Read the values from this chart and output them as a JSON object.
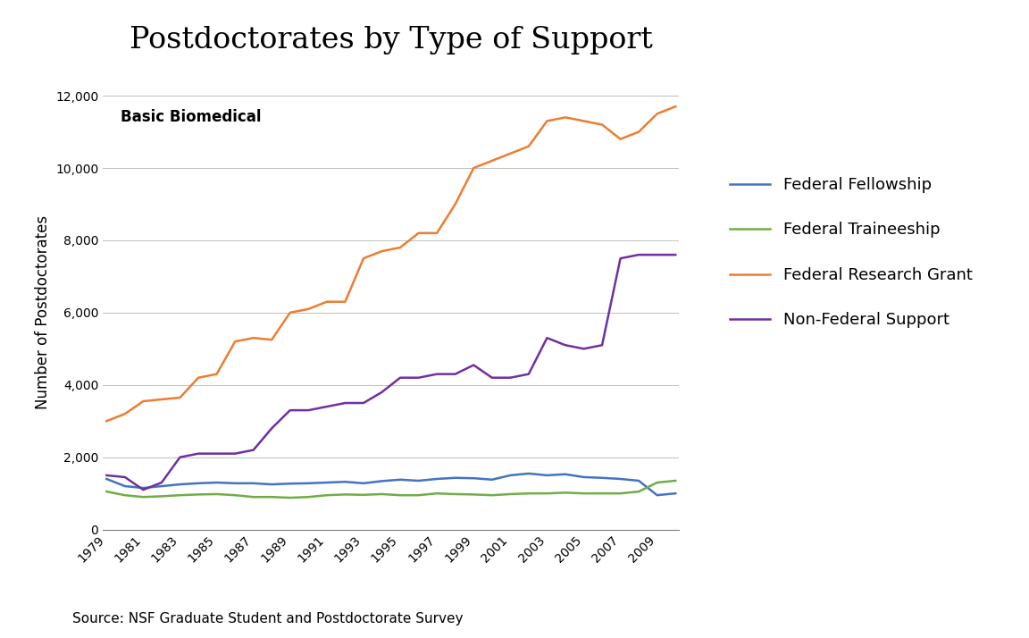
{
  "title": "Postdoctorates by Type of Support",
  "subtitle": "Basic Biomedical",
  "ylabel": "Number of Postdoctorates",
  "source": "Source: NSF Graduate Student and Postdoctorate Survey",
  "years": [
    1979,
    1980,
    1981,
    1982,
    1983,
    1984,
    1985,
    1986,
    1987,
    1988,
    1989,
    1990,
    1991,
    1992,
    1993,
    1994,
    1995,
    1996,
    1997,
    1998,
    1999,
    2000,
    2001,
    2002,
    2003,
    2004,
    2005,
    2006,
    2007,
    2008,
    2009,
    2010
  ],
  "federal_fellowship": [
    1400,
    1200,
    1150,
    1200,
    1250,
    1280,
    1300,
    1280,
    1280,
    1250,
    1270,
    1280,
    1300,
    1320,
    1280,
    1340,
    1380,
    1350,
    1400,
    1430,
    1420,
    1380,
    1500,
    1550,
    1500,
    1530,
    1450,
    1430,
    1400,
    1350,
    950,
    1000
  ],
  "federal_traineeship": [
    1050,
    950,
    900,
    920,
    950,
    970,
    980,
    950,
    900,
    900,
    880,
    900,
    950,
    970,
    960,
    980,
    950,
    950,
    1000,
    980,
    970,
    950,
    980,
    1000,
    1000,
    1020,
    1000,
    1000,
    1000,
    1050,
    1300,
    1350
  ],
  "federal_research_grant": [
    3000,
    3200,
    3550,
    3600,
    3650,
    4200,
    4300,
    5200,
    5300,
    5250,
    6000,
    6100,
    6300,
    6300,
    7500,
    7700,
    7800,
    8200,
    8200,
    9000,
    10000,
    10200,
    10400,
    10600,
    11300,
    11400,
    11300,
    11200,
    10800,
    11000,
    11500,
    11700
  ],
  "non_federal_support": [
    1500,
    1450,
    1100,
    1300,
    2000,
    2100,
    2100,
    2100,
    2200,
    2800,
    3300,
    3300,
    3400,
    3500,
    3500,
    3800,
    4200,
    4200,
    4300,
    4300,
    4550,
    4200,
    4200,
    4300,
    5300,
    5100,
    5000,
    5100,
    7500,
    7600,
    7600,
    7600
  ],
  "fellowship_color": "#4472C4",
  "traineeship_color": "#70AD47",
  "research_grant_color": "#ED7D31",
  "non_federal_color": "#7030A0",
  "ylim": [
    0,
    12000
  ],
  "yticks": [
    0,
    2000,
    4000,
    6000,
    8000,
    10000,
    12000
  ],
  "background_color": "#FFFFFF",
  "plot_bg_color": "#FFFFFF",
  "title_fontsize": 24,
  "axis_label_fontsize": 12,
  "legend_fontsize": 13,
  "subtitle_fontsize": 12,
  "tick_fontsize": 10,
  "source_fontsize": 11,
  "line_width": 1.8
}
